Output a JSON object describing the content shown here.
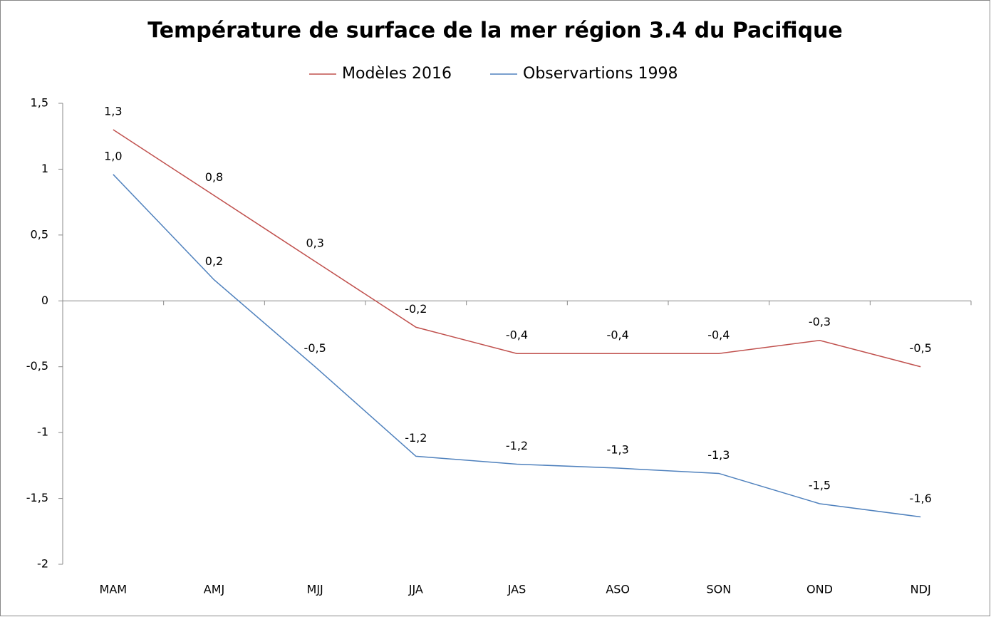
{
  "chart_data": {
    "type": "line",
    "title": "Température de surface de la mer région 3.4 du Pacifique",
    "categories": [
      "MAM",
      "AMJ",
      "MJJ",
      "JJA",
      "JAS",
      "ASO",
      "SON",
      "OND",
      "NDJ"
    ],
    "series": [
      {
        "name": "Modèles 2016",
        "color": "#c0504d",
        "values": [
          1.3,
          0.8,
          0.3,
          -0.2,
          -0.4,
          -0.4,
          -0.4,
          -0.3,
          -0.5
        ],
        "value_labels": [
          "1,3",
          "0,8",
          "0,3",
          "-0,2",
          "-0,4",
          "-0,4",
          "-0,4",
          "-0,3",
          "-0,5"
        ]
      },
      {
        "name": "Observartions 1998",
        "color": "#4f81bd",
        "values": [
          0.96,
          0.16,
          -0.5,
          -1.18,
          -1.24,
          -1.27,
          -1.31,
          -1.54,
          -1.64
        ],
        "value_labels": [
          "1,0",
          "0,2",
          "-0,5",
          "-1,2",
          "-1,2",
          "-1,3",
          "-1,3",
          "-1,5",
          "-1,6"
        ]
      }
    ],
    "ylim": [
      -2,
      1.5
    ],
    "yticks": [
      -2,
      {
        "value": -1.5,
        "label": "-1,5"
      },
      -1,
      {
        "value": -0.5,
        "label": "-0,5"
      },
      0,
      {
        "value": 0.5,
        "label": "0,5"
      },
      1,
      {
        "value": 1.5,
        "label": "1,5"
      }
    ],
    "legend": "top",
    "grid": false
  }
}
